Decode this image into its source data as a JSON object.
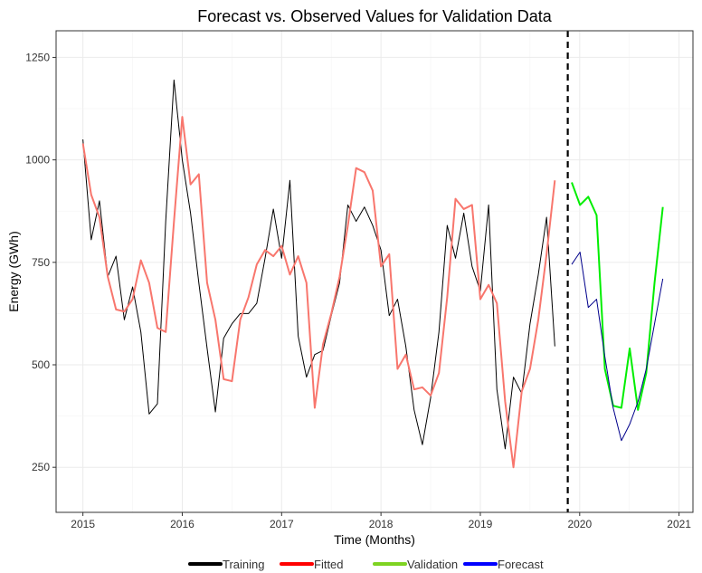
{
  "chart_data": {
    "type": "line",
    "title": "Forecast vs. Observed Values for Validation Data",
    "xlabel": "Time (Months)",
    "ylabel": "Energy (GWh)",
    "xlim": [
      2014.73,
      2021.14
    ],
    "ylim": [
      140,
      1315
    ],
    "x_ticks": [
      2015,
      2016,
      2017,
      2018,
      2019,
      2020,
      2021
    ],
    "y_ticks": [
      250,
      500,
      750,
      1000,
      1250
    ],
    "grid": true,
    "legend_position": "bottom",
    "cutoff_x": 2019.88,
    "series": [
      {
        "name": "Training",
        "color": "#000000",
        "start": 2015.0,
        "step": 0.0833333,
        "values": [
          1050,
          805,
          900,
          715,
          765,
          610,
          690,
          580,
          380,
          405,
          850,
          1195,
          1000,
          870,
          700,
          540,
          385,
          565,
          600,
          625,
          625,
          650,
          760,
          880,
          760,
          950,
          570,
          470,
          525,
          535,
          620,
          700,
          890,
          850,
          885,
          840,
          780,
          620,
          660,
          545,
          390,
          305,
          420,
          580,
          840,
          760,
          870,
          740,
          680,
          890,
          440,
          295,
          470,
          430,
          600,
          720,
          860,
          545
        ]
      },
      {
        "name": "Fitted",
        "color": "#F8766D",
        "start": 2015.0,
        "step": 0.0833333,
        "values": [
          1040,
          915,
          860,
          715,
          635,
          630,
          660,
          755,
          700,
          590,
          580,
          850,
          1105,
          940,
          965,
          700,
          610,
          465,
          460,
          610,
          665,
          745,
          780,
          765,
          790,
          720,
          765,
          700,
          395,
          550,
          625,
          715,
          840,
          980,
          970,
          925,
          740,
          770,
          490,
          525,
          440,
          445,
          425,
          480,
          665,
          905,
          880,
          890,
          660,
          695,
          650,
          410,
          250,
          435,
          490,
          610,
          770,
          950
        ]
      },
      {
        "name": "Validation",
        "color": "#00EE00",
        "start": 2019.92,
        "step": 0.0833333,
        "values": [
          945,
          890,
          910,
          865,
          490,
          400,
          395,
          540,
          390,
          480,
          700,
          885
        ]
      },
      {
        "name": "Forecast",
        "color": "#00008B",
        "start": 2019.92,
        "step": 0.0833333,
        "values": [
          745,
          775,
          640,
          660,
          520,
          395,
          315,
          355,
          410,
          490,
          600,
          710
        ]
      }
    ],
    "legend": [
      {
        "label": "Training",
        "color": "#000000"
      },
      {
        "label": "Fitted",
        "color": "#FF0000"
      },
      {
        "label": "Validation",
        "color": "#7ED321"
      },
      {
        "label": "Forecast",
        "color": "#0000FF"
      }
    ]
  }
}
